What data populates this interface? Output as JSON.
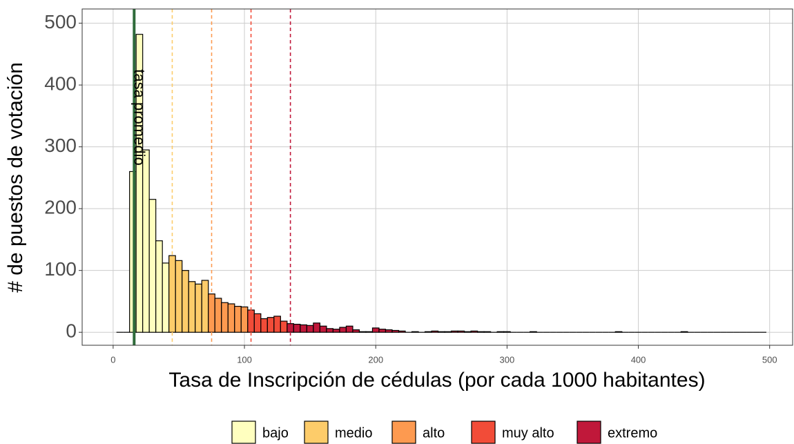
{
  "chart_data": {
    "type": "histogram",
    "x_label": "Tasa de Inscripción de cédulas (por cada 1000 habitantes)",
    "y_label": "# de puestos de votación",
    "bins": [
      2.5,
      7.5,
      12.5,
      17.5,
      22.5,
      27.5,
      32.5,
      37.5,
      42.5,
      47.5,
      52.5,
      57.5,
      62.5,
      67.5,
      72.5,
      77.5,
      82.5,
      87.5,
      92.5,
      97.5,
      102.5,
      107.5,
      112.5,
      117.5,
      122.5,
      127.5,
      132.5,
      137.5,
      142.5,
      147.5,
      152.5,
      157.5,
      162.5,
      167.5,
      172.5,
      177.5,
      182.5,
      187.5,
      192.5,
      197.5,
      202.5,
      207.5,
      212.5,
      217.5,
      222.5,
      227.5,
      232.5,
      237.5,
      242.5,
      247.5,
      252.5,
      257.5,
      262.5,
      267.5,
      272.5,
      277.5,
      282.5,
      287.5,
      292.5,
      297.5,
      302.5,
      307.5,
      312.5,
      317.5,
      322.5,
      327.5,
      332.5,
      337.5,
      342.5,
      347.5,
      352.5,
      357.5,
      362.5,
      367.5,
      372.5,
      377.5,
      382.5,
      387.5,
      392.5,
      397.5,
      402.5,
      407.5,
      412.5,
      417.5,
      422.5,
      427.5,
      432.5,
      437.5,
      442.5,
      447.5,
      452.5,
      457.5,
      462.5,
      467.5,
      472.5,
      477.5,
      482.5,
      487.5,
      492.5,
      497.5
    ],
    "values": [
      0,
      0,
      260,
      482,
      295,
      215,
      148,
      112,
      124,
      116,
      100,
      82,
      78,
      84,
      62,
      55,
      48,
      46,
      42,
      41,
      36,
      30,
      22,
      24,
      26,
      18,
      14,
      13,
      12,
      11,
      15,
      10,
      6,
      5,
      8,
      10,
      4,
      1,
      1,
      7,
      5,
      4,
      3,
      2,
      0,
      1,
      0,
      1,
      2,
      1,
      1,
      2,
      2,
      1,
      2,
      1,
      1,
      0,
      1,
      1,
      0,
      0,
      0,
      1,
      0,
      0,
      0,
      0,
      0,
      0,
      0,
      0,
      0,
      0,
      0,
      0,
      1,
      0,
      0,
      0,
      0,
      0,
      0,
      0,
      0,
      0,
      1,
      0,
      0,
      0,
      0,
      0,
      0,
      0,
      0,
      0,
      0,
      0,
      0
    ],
    "series": [
      {
        "name": "bajo",
        "color": "#ffffbf"
      },
      {
        "name": "medio",
        "color": "#fdcc6a"
      },
      {
        "name": "alto",
        "color": "#fd9a50"
      },
      {
        "name": "muy alto",
        "color": "#f24c38"
      },
      {
        "name": "extremo",
        "color": "#c0183a"
      }
    ],
    "thresholds": [
      45,
      75,
      105,
      135
    ],
    "mean_line": {
      "value": 16,
      "label": "tasa promedio",
      "color": "#2e6b3a"
    },
    "xlim": [
      -23.6,
      517.5
    ],
    "ylim": [
      -21,
      523
    ],
    "xticks": [
      0,
      100,
      200,
      300,
      400,
      500
    ],
    "yticks": [
      0,
      100,
      200,
      300,
      400,
      500
    ],
    "grid": true
  }
}
